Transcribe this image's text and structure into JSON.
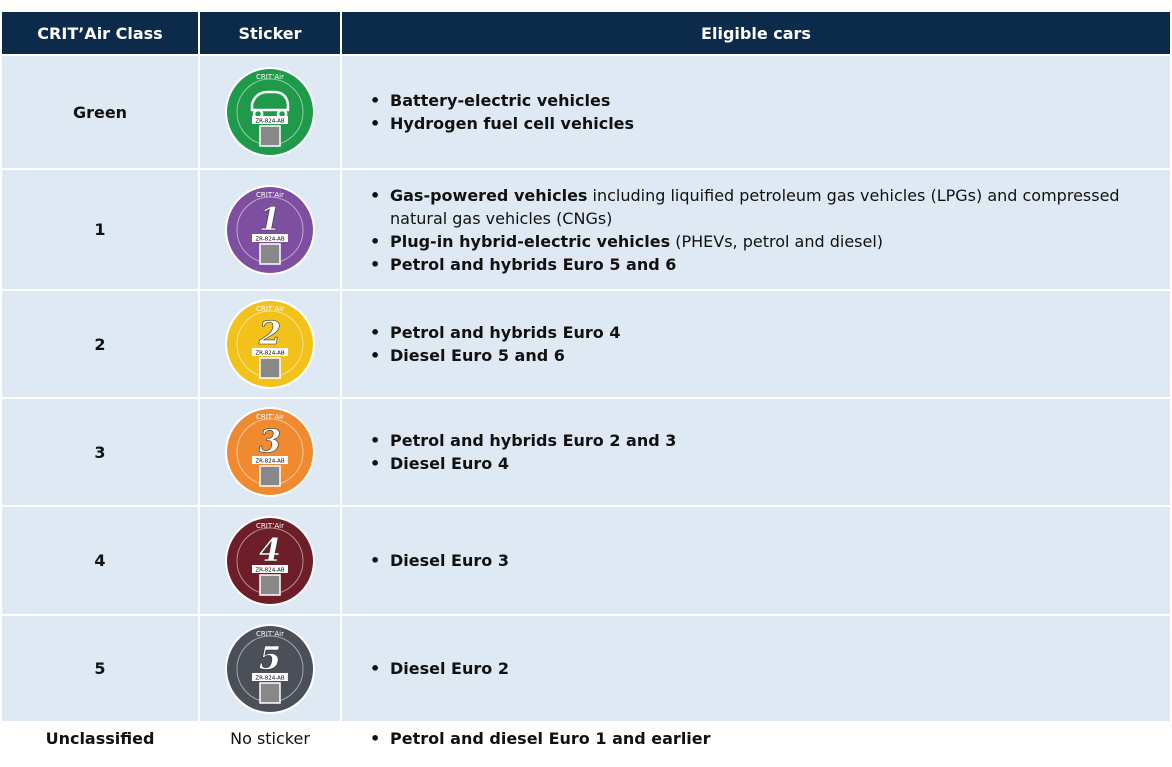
{
  "table": {
    "headers": [
      "CRIT’Air Class",
      "Sticker",
      "Eligible cars"
    ],
    "sticker_label": "CRIT’Air",
    "sticker_plate": "ZR-824-AB",
    "rows": [
      {
        "class": "Green",
        "color": "#1f9a4b",
        "items": [
          {
            "bold": "Battery-electric vehicles"
          },
          {
            "bold": "Hydrogen fuel cell vehicles"
          }
        ]
      },
      {
        "class": "1",
        "color": "#7e4ea0",
        "digit": "1",
        "items": [
          {
            "bold": "Gas-powered vehicles",
            "text": " including liquified petroleum gas vehicles (LPGs) and compressed natural gas vehicles (CNGs)"
          },
          {
            "bold": "Plug-in hybrid-electric vehicles",
            "text": " (PHEVs, petrol and diesel)"
          },
          {
            "bold": "Petrol and hybrids Euro 5 and 6"
          }
        ]
      },
      {
        "class": "2",
        "color": "#f2c21a",
        "digit": "2",
        "items": [
          {
            "bold": "Petrol and hybrids Euro 4"
          },
          {
            "bold": "Diesel Euro 5 and 6"
          }
        ]
      },
      {
        "class": "3",
        "color": "#ef8a30",
        "digit": "3",
        "items": [
          {
            "bold": "Petrol and hybrids Euro 2 and 3"
          },
          {
            "bold": "Diesel Euro 4"
          }
        ]
      },
      {
        "class": "4",
        "color": "#6e1e28",
        "digit": "4",
        "items": [
          {
            "bold": "Diesel Euro 3"
          }
        ]
      },
      {
        "class": "5",
        "color": "#4a4f58",
        "digit": "5",
        "items": [
          {
            "bold": "Diesel Euro 2"
          }
        ]
      },
      {
        "class": "Unclassified",
        "sticker": "No sticker",
        "items": [
          {
            "bold": "Petrol and diesel Euro 1 and earlier"
          }
        ]
      }
    ]
  }
}
